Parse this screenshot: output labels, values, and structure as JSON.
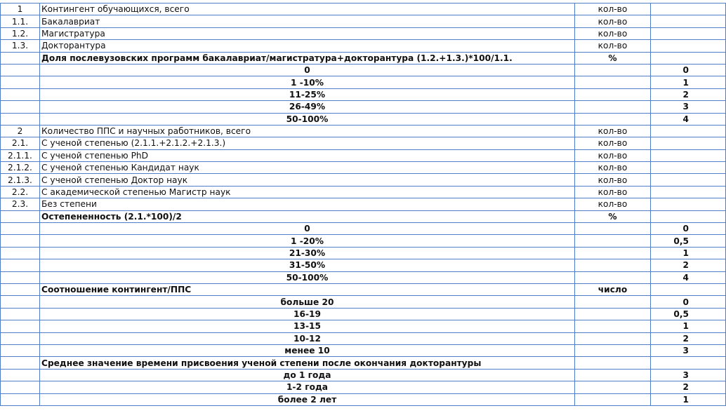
{
  "table": {
    "rows": [
      {
        "n": "1",
        "label": "Контингент обучающихся, всего",
        "unit": "кол-во"
      },
      {
        "n": "1.1.",
        "label": "Бакалавриат",
        "unit": "кол-во"
      },
      {
        "n": "1.2.",
        "label": "Магистратура",
        "unit": "кол-во"
      },
      {
        "n": "1.3.",
        "label": "Докторантура",
        "unit": "кол-во"
      },
      {
        "label": "Доля послевузовских программ бакалавриат/магистратура+докторантура (1.2.+1.3.)*100/1.1.",
        "unit": "%"
      },
      {
        "label": "0",
        "score": "0"
      },
      {
        "label": "1 -10%",
        "score": "1"
      },
      {
        "label": "11-25%",
        "score": "2"
      },
      {
        "label": "26-49%",
        "score": "3"
      },
      {
        "label": "50-100%",
        "score": "4"
      },
      {
        "n": "2",
        "label": "Количество ППС и научных работников, всего",
        "unit": "кол-во"
      },
      {
        "n": "2.1.",
        "label": "С ученой степенью (2.1.1.+2.1.2.+2.1.3.)",
        "unit": "кол-во"
      },
      {
        "n": "2.1.1.",
        "label": "С ученой степенью PhD",
        "unit": "кол-во"
      },
      {
        "n": "2.1.2.",
        "label": "С ученой степенью Кандидат наук",
        "unit": "кол-во"
      },
      {
        "n": "2.1.3.",
        "label": "С ученой степенью Доктор наук",
        "unit": "кол-во"
      },
      {
        "n": "2.2.",
        "label": "С академической степенью Магистр наук",
        "unit": "кол-во"
      },
      {
        "n": "2.3.",
        "label": "Без степени",
        "unit": "кол-во"
      },
      {
        "label": "Остепененность (2.1.*100)/2",
        "unit": "%"
      },
      {
        "label": "0",
        "score": "0"
      },
      {
        "label": "1 -20%",
        "score": "0,5"
      },
      {
        "label": "21-30%",
        "score": "1"
      },
      {
        "label": "31-50%",
        "score": "2"
      },
      {
        "label": "50-100%",
        "score": "4"
      },
      {
        "label": "Соотношение контингент/ППС",
        "unit": "число"
      },
      {
        "label": "больше 20",
        "score": "0"
      },
      {
        "label": "16-19",
        "score": "0,5"
      },
      {
        "label": "13-15",
        "score": "1"
      },
      {
        "label": "10-12",
        "score": "2"
      },
      {
        "label": "менее 10",
        "score": "3"
      },
      {
        "label": "Среднее значение времени присвоения ученой степени после окончания докторантуры"
      },
      {
        "label": "до 1 года",
        "score": "3"
      },
      {
        "label": "1-2 года",
        "score": "2"
      },
      {
        "label": "более 2 лет",
        "score": "1"
      }
    ]
  }
}
